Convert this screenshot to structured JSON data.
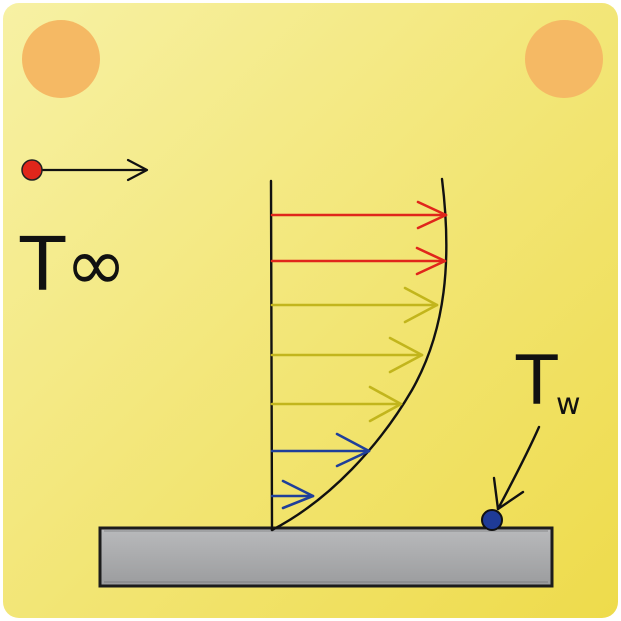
{
  "labels": {
    "free_stream_temp": "T∞",
    "wall_temp_main": "T",
    "wall_temp_sub": "w"
  },
  "colors": {
    "background_light": "#f6ef9e",
    "background_dark": "#efd94a",
    "pin": "#f5b964",
    "plate": "#a6a7a9",
    "hot_arrow": "#e0261b",
    "mid_arrow": "#c2b51c",
    "cold_arrow": "#1f3f9a",
    "free_stream_dot": "#e0261b",
    "wall_dot": "#1f3b96",
    "ink": "#111111"
  }
}
